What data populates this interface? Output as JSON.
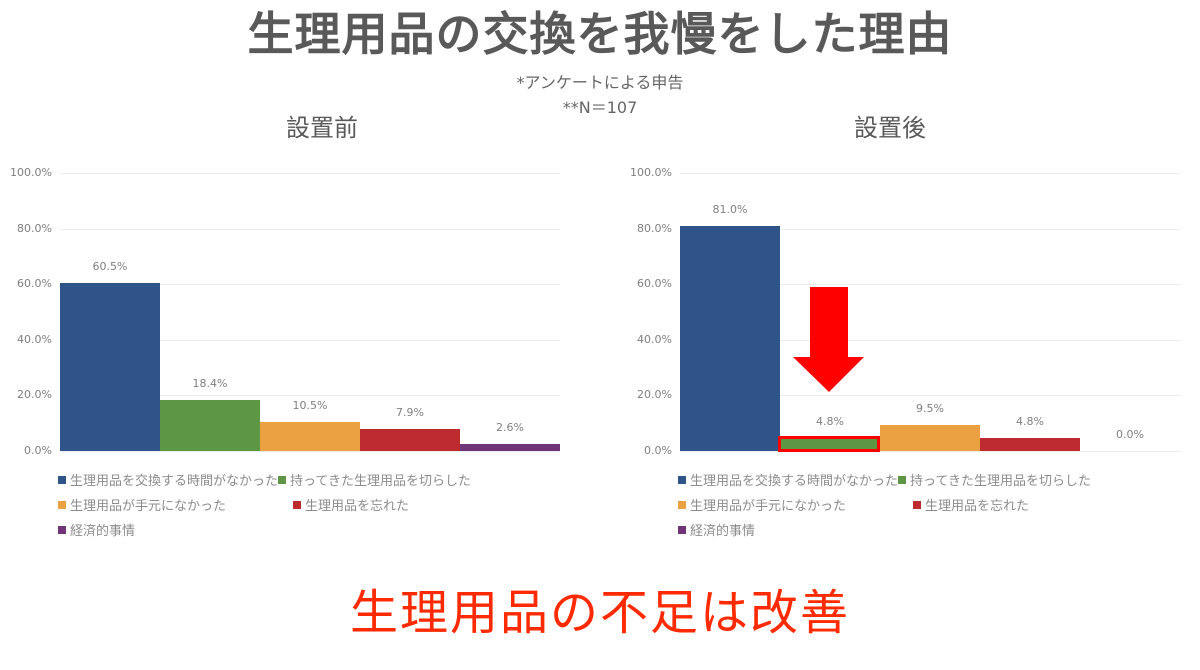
{
  "header": {
    "title": "生理用品の交換を我慢をした理由",
    "note1": "*アンケートによる申告",
    "note2": "**N＝107"
  },
  "panels": [
    {
      "title": "設置前"
    },
    {
      "title": "設置後"
    }
  ],
  "conclusion": "生理用品の不足は改善",
  "colors": {
    "series1": "#2f5489",
    "series2": "#5e9744",
    "series3": "#eba142",
    "series4": "#bd2b2e",
    "series5": "#6f3579",
    "arrow": "#ff0000",
    "conclusion": "#ff2a00"
  },
  "chart_data": [
    {
      "type": "bar",
      "title": "設置前",
      "categories": [
        "生理用品を交換する時間がなかった",
        "持ってきた生理用品を切らした",
        "生理用品が手元になかった",
        "生理用品を忘れた",
        "経済的事情"
      ],
      "values": [
        60.5,
        18.4,
        10.5,
        7.9,
        2.6
      ],
      "value_labels": [
        "60.5%",
        "18.4%",
        "10.5%",
        "7.9%",
        "2.6%"
      ],
      "ylim": [
        0,
        100
      ],
      "yticks": [
        "100.0%",
        "80.0%",
        "60.0%",
        "40.0%",
        "20.0%",
        "0.0%"
      ],
      "grid": true,
      "legend_position": "bottom"
    },
    {
      "type": "bar",
      "title": "設置後",
      "categories": [
        "生理用品を交換する時間がなかった",
        "持ってきた生理用品を切らした",
        "生理用品が手元になかった",
        "生理用品を忘れた",
        "経済的事情"
      ],
      "values": [
        81.0,
        4.8,
        9.5,
        4.8,
        0.0
      ],
      "value_labels": [
        "81.0%",
        "4.8%",
        "9.5%",
        "4.8%",
        "0.0%"
      ],
      "ylim": [
        0,
        100
      ],
      "yticks": [
        "100.0%",
        "80.0%",
        "60.0%",
        "40.0%",
        "20.0%",
        "0.0%"
      ],
      "grid": true,
      "legend_position": "bottom",
      "annotations": [
        "red down arrow pointing to 持ってきた生理用品を切らした bar",
        "red box highlighting 4.8% bar"
      ]
    }
  ],
  "legend": [
    {
      "label": "生理用品を交換する時間がなかった",
      "color": "#2f5489"
    },
    {
      "label": "持ってきた生理用品を切らした",
      "color": "#5e9744"
    },
    {
      "label": "生理用品が手元になかった",
      "color": "#eba142"
    },
    {
      "label": "生理用品を忘れた",
      "color": "#bd2b2e"
    },
    {
      "label": "経済的事情",
      "color": "#6f3579"
    }
  ]
}
